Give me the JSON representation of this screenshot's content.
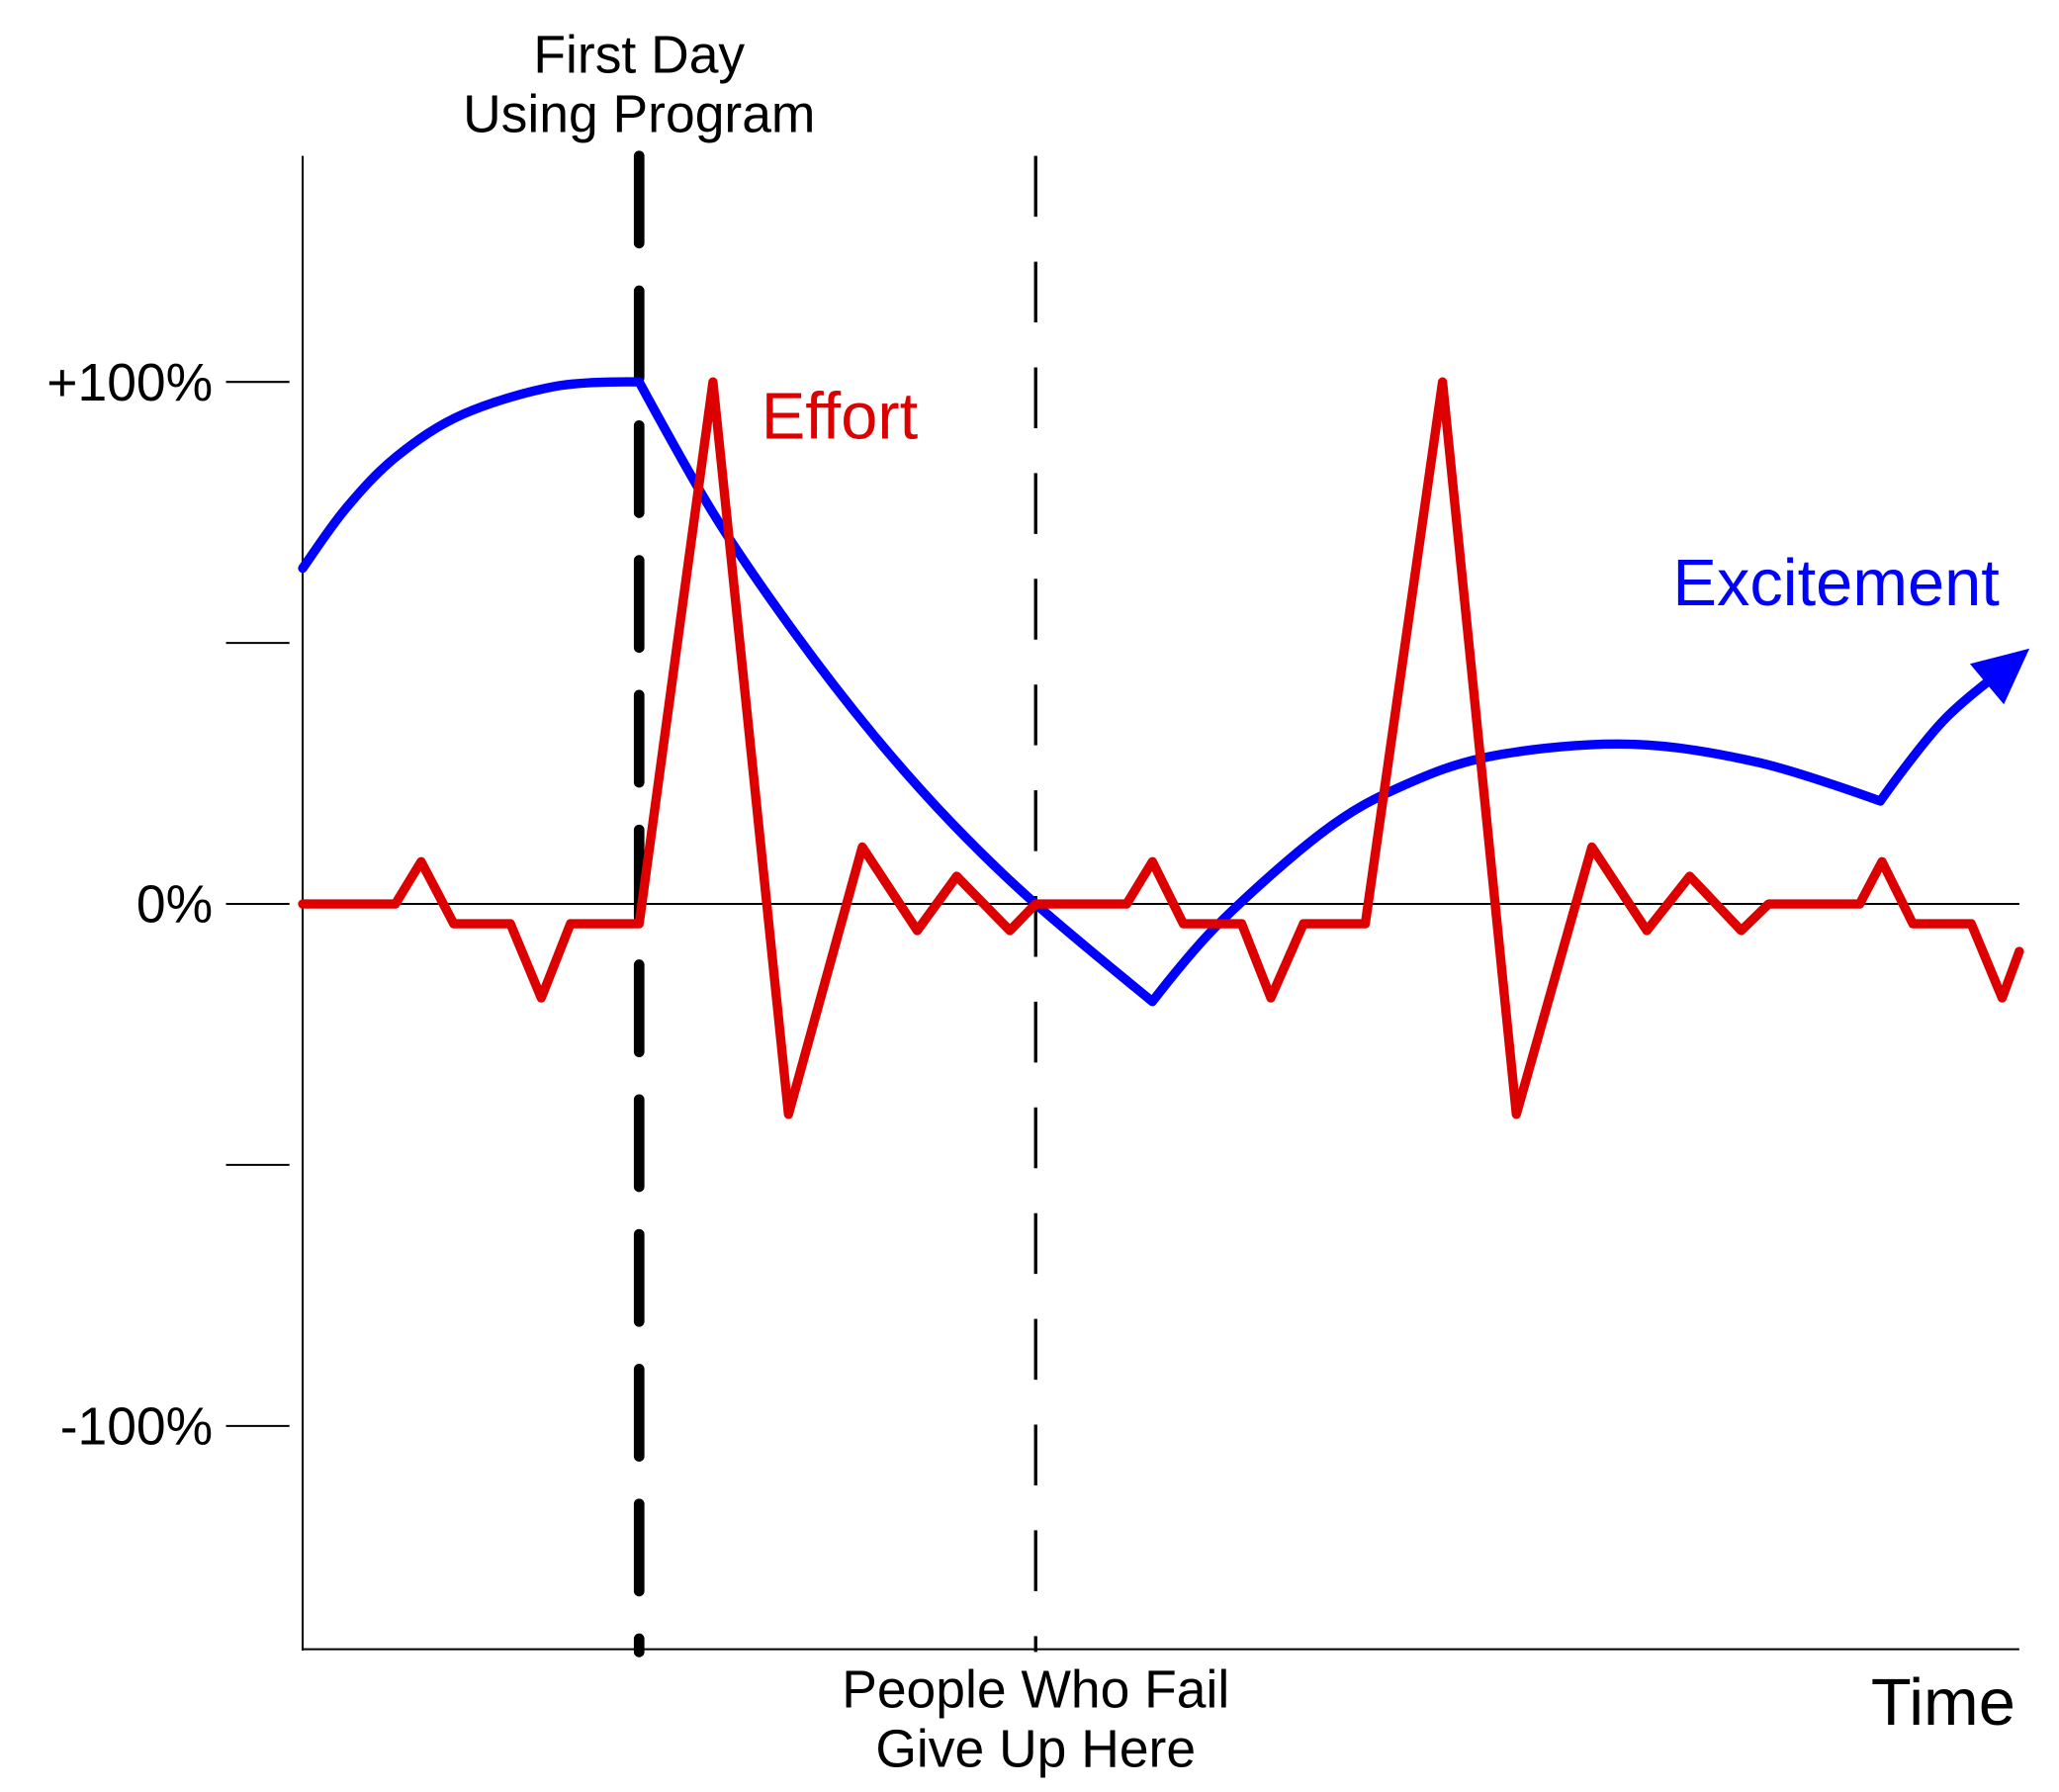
{
  "chart_data": {
    "type": "line",
    "title": "",
    "xlabel": "Time",
    "ylabel": "",
    "xlim": [
      0,
      100
    ],
    "ylim": [
      -143,
      143
    ],
    "yticks": [
      {
        "value": 100,
        "label": "+100%"
      },
      {
        "value": 50,
        "label": ""
      },
      {
        "value": 0,
        "label": "0%"
      },
      {
        "value": -50,
        "label": ""
      },
      {
        "value": -100,
        "label": "-100%"
      }
    ],
    "grid": false,
    "markers": [
      {
        "x": 19.6,
        "label_lines": [
          "First Day",
          "Using Program"
        ],
        "position": "top",
        "style": "thick-dashed",
        "color": "#000000"
      },
      {
        "x": 42.7,
        "label_lines": [
          "People Who Fail",
          "Give Up Here"
        ],
        "position": "bottom",
        "style": "thin-dashed",
        "color": "#000000"
      }
    ],
    "series": [
      {
        "name": "Effort",
        "color": "#dd0000",
        "x": [
          0,
          5.4,
          6.9,
          8.8,
          12.1,
          13.9,
          15.6,
          19.6,
          23.9,
          28.3,
          32.6,
          35.8,
          38.1,
          41.2,
          42.7,
          48,
          49.5,
          51.3,
          54.7,
          56.4,
          58.3,
          61.9,
          66.4,
          70.7,
          75.1,
          78.3,
          80.8,
          83.8,
          85.4,
          90.7,
          92,
          93.8,
          97.2,
          99,
          100
        ],
        "y": [
          0,
          0,
          8.1,
          -3.8,
          -3.8,
          -18,
          -3.8,
          -3.8,
          100,
          -40.3,
          10.9,
          -5.1,
          5.3,
          -5.1,
          0,
          0,
          8.1,
          -3.8,
          -3.8,
          -18,
          -3.8,
          -3.8,
          100,
          -40.3,
          10.9,
          -5.1,
          5.3,
          -5.1,
          0,
          0,
          8.1,
          -3.8,
          -3.8,
          -18,
          -9.1
        ]
      },
      {
        "name": "Excitement",
        "color": "#0000ff",
        "arrow_end": true,
        "x": [
          0,
          2.5,
          5.5,
          9.4,
          14.8,
          19.6,
          24,
          28.6,
          33.3,
          37.9,
          42.7,
          49.5,
          53.3,
          59.4,
          64,
          69.4,
          77.3,
          84.8,
          91.9,
          95.6,
          100
        ],
        "y": [
          64.3,
          75.7,
          85.8,
          93.9,
          99.2,
          100,
          74.4,
          52.2,
          32.2,
          15.2,
          0,
          -18.7,
          -4,
          13.7,
          22.5,
          28.4,
          30.6,
          27.1,
          19.7,
          35.2,
          47.3
        ]
      }
    ]
  }
}
